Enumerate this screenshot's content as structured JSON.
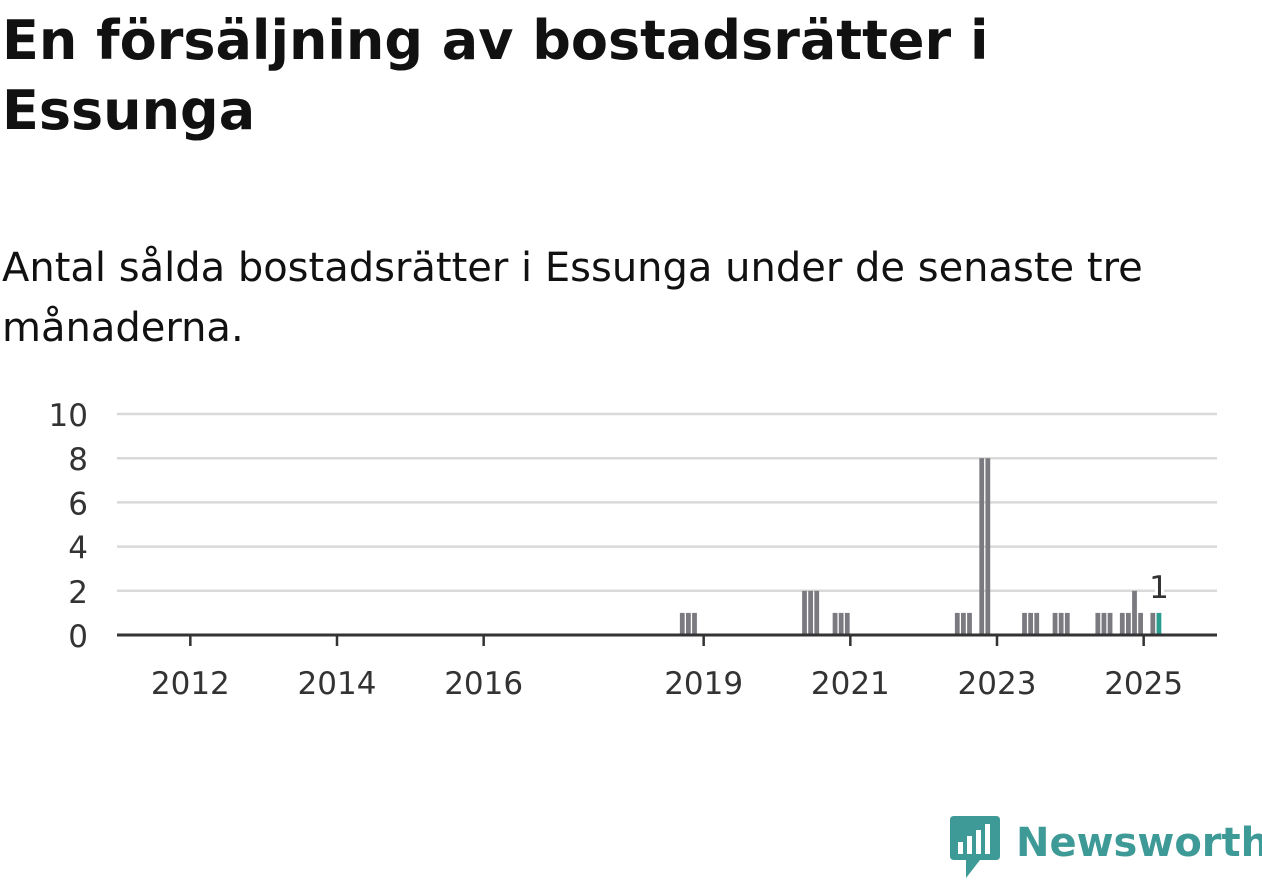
{
  "title": "En försäljning av bostadsrätter i Essunga",
  "subtitle": "Antal sålda bostadsrätter i Essunga under de senaste tre månaderna.",
  "brand": {
    "name": "Newsworthy",
    "icon": "newsworthy-logo-icon",
    "color": "#3e9a96"
  },
  "colors": {
    "bar": "#7a7a80",
    "highlight": "#2a9d8f",
    "grid": "#d9d9d9",
    "axis": "#333333"
  },
  "chart_data": {
    "type": "bar",
    "title": "En försäljning av bostadsrätter i Essunga",
    "subtitle": "Antal sålda bostadsrätter i Essunga under de senaste tre månaderna.",
    "xlabel": "",
    "ylabel": "",
    "ylim": [
      0,
      10
    ],
    "yticks": [
      0,
      2,
      4,
      6,
      8,
      10
    ],
    "xlim": [
      "2011-01",
      "2025-12"
    ],
    "xticks": [
      {
        "date": "2012-01",
        "label": "2012"
      },
      {
        "date": "2014-01",
        "label": "2014"
      },
      {
        "date": "2016-01",
        "label": "2016"
      },
      {
        "date": "2019-01",
        "label": "2019"
      },
      {
        "date": "2021-01",
        "label": "2021"
      },
      {
        "date": "2023-01",
        "label": "2023"
      },
      {
        "date": "2025-01",
        "label": "2025"
      }
    ],
    "grid": true,
    "legend": "none",
    "series": [
      {
        "data": [
          {
            "x": "2018-09",
            "y": 1
          },
          {
            "x": "2018-10",
            "y": 1
          },
          {
            "x": "2018-11",
            "y": 1
          },
          {
            "x": "2020-05",
            "y": 2
          },
          {
            "x": "2020-06",
            "y": 2
          },
          {
            "x": "2020-07",
            "y": 2
          },
          {
            "x": "2020-10",
            "y": 1
          },
          {
            "x": "2020-11",
            "y": 1
          },
          {
            "x": "2020-12",
            "y": 1
          },
          {
            "x": "2022-06",
            "y": 1
          },
          {
            "x": "2022-07",
            "y": 1
          },
          {
            "x": "2022-08",
            "y": 1
          },
          {
            "x": "2022-10",
            "y": 8
          },
          {
            "x": "2022-11",
            "y": 8
          },
          {
            "x": "2023-05",
            "y": 1
          },
          {
            "x": "2023-06",
            "y": 1
          },
          {
            "x": "2023-07",
            "y": 1
          },
          {
            "x": "2023-10",
            "y": 1
          },
          {
            "x": "2023-11",
            "y": 1
          },
          {
            "x": "2023-12",
            "y": 1
          },
          {
            "x": "2024-05",
            "y": 1
          },
          {
            "x": "2024-06",
            "y": 1
          },
          {
            "x": "2024-07",
            "y": 1
          },
          {
            "x": "2024-09",
            "y": 1
          },
          {
            "x": "2024-10",
            "y": 1
          },
          {
            "x": "2024-11",
            "y": 2
          },
          {
            "x": "2024-12",
            "y": 1
          },
          {
            "x": "2025-02",
            "y": 1
          },
          {
            "x": "2025-03",
            "y": 1,
            "highlight": true
          }
        ]
      }
    ],
    "annotations": [
      {
        "x": "2025-03",
        "text": "1"
      }
    ]
  }
}
